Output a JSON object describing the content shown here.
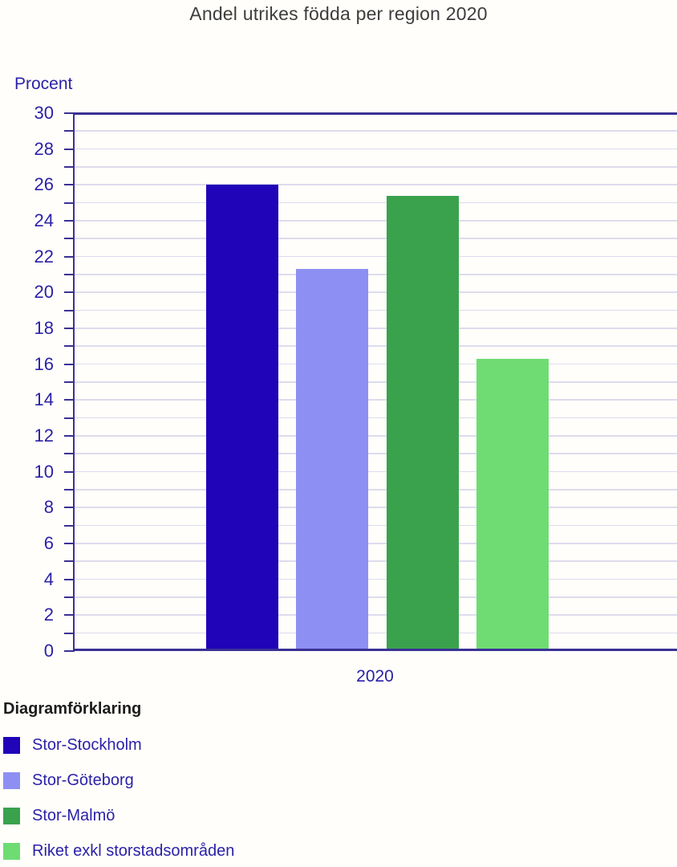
{
  "chart_data": {
    "type": "bar",
    "title": "Andel utrikes födda per region 2020",
    "ylabel": "Procent",
    "xlabel": "",
    "categories": [
      "2020"
    ],
    "series": [
      {
        "name": "Stor-Stockholm",
        "values": [
          26.0
        ],
        "color": "#2004b8"
      },
      {
        "name": "Stor-Göteborg",
        "values": [
          21.3
        ],
        "color": "#8d90f2"
      },
      {
        "name": "Stor-Malmö",
        "values": [
          25.4
        ],
        "color": "#3aa24d"
      },
      {
        "name": "Riket exkl storstadsområden",
        "values": [
          16.3
        ],
        "color": "#6fdc73"
      }
    ],
    "ylim": [
      0,
      30
    ],
    "y_major_tick_step": 2,
    "y_minor_tick_step": 1,
    "grid": true,
    "legend_position": "bottom-left"
  },
  "legend": {
    "title": "Diagramförklaring"
  },
  "colors": {
    "axis": "#3a3195",
    "tick_text": "#2b21a8",
    "grid": "#dedbee",
    "title_text": "#3d3d3d",
    "legend_title_text": "#1c1c1c"
  }
}
